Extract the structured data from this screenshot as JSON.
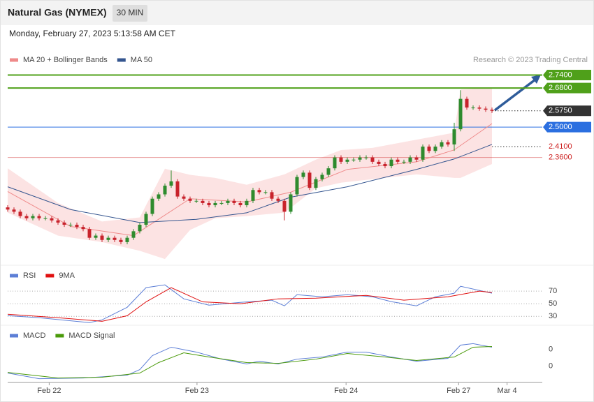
{
  "header": {
    "title": "Natural Gas (NYMEX)",
    "interval": "30 MIN",
    "timestamp": "Monday, February 27, 2023 5:13:58 AM CET"
  },
  "chart_data": [
    {
      "type": "candlestick",
      "credit": "Research © 2023 Trading Central",
      "xlim": [
        0,
        85
      ],
      "ylim": [
        1.87,
        2.78
      ],
      "xticks": [
        {
          "value": 6.6,
          "label": "Feb 22"
        },
        {
          "value": 30.1,
          "label": "Feb 23"
        },
        {
          "value": 53.8,
          "label": "Feb 24"
        },
        {
          "value": 71.7,
          "label": "Feb 27"
        },
        {
          "value": 79.4,
          "label": "Mar 4"
        }
      ],
      "up_color": "#2e8b2e",
      "down_color": "#c8232c",
      "open": [
        2.13,
        2.12,
        2.11,
        2.09,
        2.08,
        2.09,
        2.08,
        2.08,
        2.07,
        2.06,
        2.05,
        2.05,
        2.04,
        2.03,
        1.99,
        2.0,
        1.98,
        1.99,
        1.98,
        1.97,
        1.99,
        2.02,
        2.05,
        2.1,
        2.17,
        2.19,
        2.23,
        2.25,
        2.18,
        2.17,
        2.16,
        2.16,
        2.15,
        2.14,
        2.15,
        2.15,
        2.16,
        2.15,
        2.14,
        2.16,
        2.21,
        2.2,
        2.2,
        2.17,
        2.16,
        2.11,
        2.19,
        2.27,
        2.29,
        2.22,
        2.26,
        2.28,
        2.31,
        2.36,
        2.34,
        2.35,
        2.35,
        2.36,
        2.36,
        2.34,
        2.33,
        2.32,
        2.35,
        2.34,
        2.34,
        2.36,
        2.35,
        2.41,
        2.39,
        2.41,
        2.43,
        2.42,
        2.49,
        2.63,
        2.59,
        2.59,
        2.585,
        2.58
      ],
      "high": [
        2.14,
        2.13,
        2.12,
        2.1,
        2.1,
        2.1,
        2.09,
        2.09,
        2.08,
        2.07,
        2.06,
        2.06,
        2.05,
        2.04,
        2.01,
        2.01,
        2.0,
        2.0,
        1.99,
        2.0,
        2.03,
        2.06,
        2.11,
        2.18,
        2.2,
        2.24,
        2.3,
        2.26,
        2.19,
        2.18,
        2.17,
        2.17,
        2.16,
        2.16,
        2.16,
        2.17,
        2.17,
        2.16,
        2.17,
        2.22,
        2.22,
        2.21,
        2.21,
        2.18,
        2.17,
        2.2,
        2.28,
        2.3,
        2.3,
        2.27,
        2.29,
        2.32,
        2.37,
        2.37,
        2.36,
        2.36,
        2.37,
        2.37,
        2.37,
        2.35,
        2.34,
        2.36,
        2.36,
        2.35,
        2.37,
        2.37,
        2.42,
        2.42,
        2.42,
        2.44,
        2.44,
        2.52,
        2.67,
        2.64,
        2.6,
        2.6,
        2.595,
        2.59
      ],
      "low": [
        2.11,
        2.1,
        2.08,
        2.07,
        2.07,
        2.07,
        2.07,
        2.06,
        2.05,
        2.04,
        2.04,
        2.03,
        2.02,
        1.98,
        1.98,
        1.97,
        1.97,
        1.97,
        1.96,
        1.96,
        1.98,
        2.01,
        2.04,
        2.09,
        2.16,
        2.18,
        2.22,
        2.17,
        2.16,
        2.15,
        2.15,
        2.14,
        2.13,
        2.13,
        2.14,
        2.14,
        2.14,
        2.13,
        2.13,
        2.15,
        2.19,
        2.19,
        2.16,
        2.15,
        2.07,
        2.1,
        2.18,
        2.26,
        2.21,
        2.21,
        2.25,
        2.27,
        2.3,
        2.33,
        2.33,
        2.34,
        2.34,
        2.35,
        2.33,
        2.32,
        2.31,
        2.31,
        2.33,
        2.33,
        2.33,
        2.34,
        2.34,
        2.38,
        2.38,
        2.4,
        2.41,
        2.39,
        2.48,
        2.58,
        2.58,
        2.575,
        2.57,
        2.565
      ],
      "close": [
        2.12,
        2.11,
        2.09,
        2.08,
        2.09,
        2.08,
        2.08,
        2.07,
        2.06,
        2.05,
        2.05,
        2.04,
        2.03,
        1.99,
        2.0,
        1.98,
        1.99,
        1.98,
        1.97,
        1.99,
        2.02,
        2.05,
        2.1,
        2.17,
        2.19,
        2.23,
        2.25,
        2.18,
        2.17,
        2.16,
        2.16,
        2.15,
        2.14,
        2.15,
        2.15,
        2.16,
        2.15,
        2.14,
        2.16,
        2.21,
        2.2,
        2.2,
        2.17,
        2.16,
        2.11,
        2.19,
        2.27,
        2.29,
        2.22,
        2.26,
        2.28,
        2.31,
        2.36,
        2.34,
        2.35,
        2.35,
        2.36,
        2.36,
        2.34,
        2.33,
        2.32,
        2.35,
        2.34,
        2.34,
        2.36,
        2.35,
        2.41,
        2.39,
        2.41,
        2.43,
        2.42,
        2.49,
        2.63,
        2.59,
        2.59,
        2.585,
        2.58,
        2.575
      ],
      "band": {
        "color": "#fcdede",
        "x": [
          0,
          8,
          15,
          21,
          25,
          29,
          33,
          38,
          44,
          49,
          53,
          58,
          65,
          71,
          72,
          77
        ],
        "upper": [
          2.31,
          2.15,
          2.065,
          2.084,
          2.308,
          2.28,
          2.266,
          2.234,
          2.282,
          2.35,
          2.394,
          2.404,
          2.442,
          2.474,
          2.673,
          2.682
        ],
        "lower": [
          2.106,
          2.0,
          1.97,
          1.93,
          1.892,
          2.026,
          2.08,
          2.09,
          2.106,
          2.218,
          2.244,
          2.26,
          2.282,
          2.266,
          2.266,
          2.33
        ]
      },
      "series": [
        {
          "name": "MA 20 + Bollinger Bands",
          "color": "#ef8a8a",
          "x": [
            0,
            10,
            20,
            29,
            38,
            45,
            54,
            65,
            71,
            77
          ],
          "values": [
            2.203,
            2.042,
            2.0,
            2.17,
            2.155,
            2.2,
            2.305,
            2.34,
            2.395,
            2.516
          ]
        },
        {
          "name": "MA 50",
          "color": "#34558f",
          "x": [
            0,
            10,
            21,
            30,
            38,
            45,
            54,
            65,
            71,
            77
          ],
          "values": [
            2.225,
            2.12,
            2.06,
            2.075,
            2.105,
            2.177,
            2.225,
            2.305,
            2.353,
            2.42
          ]
        }
      ],
      "levels": [
        {
          "value": 2.74,
          "label": "2.7400",
          "color": "#4fa01a",
          "style": "box",
          "line": "solid"
        },
        {
          "value": 2.68,
          "label": "2.6800",
          "color": "#4fa01a",
          "style": "box",
          "line": "solid"
        },
        {
          "value": 2.575,
          "label": "2.5750",
          "color": "#333333",
          "style": "box",
          "line": "dotted"
        },
        {
          "value": 2.5,
          "label": "2.5000",
          "color": "#2b6fe0",
          "style": "box",
          "line": "solid"
        },
        {
          "value": 2.41,
          "label": "2.4100",
          "color": "#cc1f1f",
          "style": "text",
          "line": "dotted"
        },
        {
          "value": 2.36,
          "label": "2.3600",
          "color": "#cc1f1f",
          "style": "text",
          "line": "solid"
        }
      ]
    },
    {
      "type": "line",
      "ylim": [
        17,
        109
      ],
      "yticks": [
        70,
        50,
        30
      ],
      "grid": true,
      "series": [
        {
          "name": "RSI",
          "color": "#5d7fd6",
          "x": [
            0,
            5,
            13,
            15,
            19,
            22,
            25,
            28,
            32,
            37,
            42,
            44,
            46,
            50,
            54,
            58,
            61,
            65,
            68,
            71,
            72,
            77
          ],
          "values": [
            31.1,
            27.8,
            20,
            24.4,
            44.4,
            75.6,
            80,
            57.8,
            47.8,
            52.2,
            55.6,
            46.7,
            64.4,
            61.1,
            64.4,
            61.1,
            53.3,
            46.7,
            61.1,
            66.7,
            77.8,
            66.7
          ]
        },
        {
          "name": "9MA",
          "color": "#e01010",
          "x": [
            0,
            8,
            15,
            19,
            22,
            26,
            31,
            37,
            43,
            49,
            57,
            63,
            70,
            75,
            77
          ],
          "values": [
            33.3,
            27.8,
            22.2,
            31,
            53,
            75.6,
            53,
            50,
            57.8,
            58.9,
            63.3,
            55.6,
            61.1,
            70,
            67.8
          ]
        }
      ]
    },
    {
      "type": "line",
      "ylim": [
        -0.017,
        0.047
      ],
      "yticks": [
        {
          "value": 0.02,
          "label": "0"
        },
        {
          "value": 0,
          "label": "0"
        }
      ],
      "grid": false,
      "series": [
        {
          "name": "MACD",
          "color": "#5d7fd6",
          "x": [
            0,
            5,
            12,
            19,
            21,
            23,
            26,
            30,
            34,
            38,
            40,
            43,
            46,
            50,
            54,
            57,
            61,
            65,
            70,
            72,
            74,
            77
          ],
          "values": [
            -0.0083,
            -0.015,
            -0.0142,
            -0.0108,
            -0.0042,
            0.0125,
            0.0225,
            0.0167,
            0.0083,
            0.0025,
            0.0058,
            0.0025,
            0.0083,
            0.0108,
            0.0167,
            0.0167,
            0.0108,
            0.0058,
            0.0092,
            0.025,
            0.0267,
            0.0225
          ]
        },
        {
          "name": "MACD Signal",
          "color": "#4a9a0a",
          "x": [
            0,
            8,
            15,
            21,
            24,
            28,
            32,
            38,
            43,
            49,
            54,
            60,
            65,
            71,
            74,
            77
          ],
          "values": [
            -0.0075,
            -0.0142,
            -0.0133,
            -0.0083,
            0.0042,
            0.0158,
            0.0108,
            0.0042,
            0.0033,
            0.0083,
            0.015,
            0.0108,
            0.0067,
            0.0108,
            0.0225,
            0.0233
          ]
        }
      ]
    }
  ]
}
